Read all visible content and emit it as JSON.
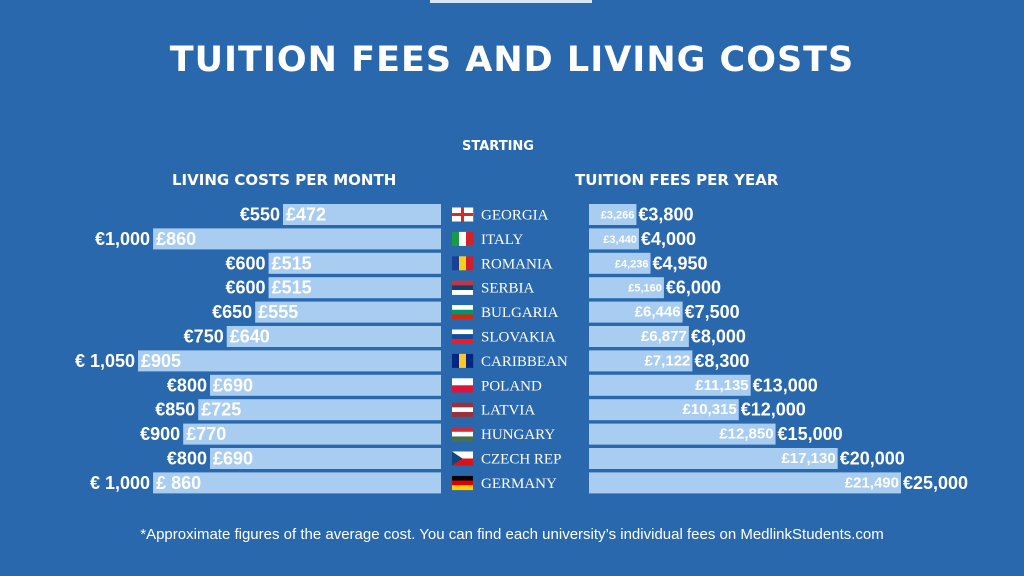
{
  "title": "TUITION FEES AND LIVING COSTS",
  "subheading": "STARTING",
  "left_header": "LIVING COSTS PER MONTH",
  "right_header": "TUITION FEES PER YEAR",
  "footnote": "*Approximate figures of the average cost. You can find each university’s individual fees on MedlinkStudents.com",
  "colors": {
    "background": "#2a68ad",
    "bar": "#a9cdf0",
    "text": "#ffffff"
  },
  "chart_data": [
    {
      "type": "bar",
      "orientation": "horizontal",
      "direction": "right-to-left",
      "title": "LIVING COSTS PER MONTH",
      "categories": [
        "GEORGIA",
        "ITALY",
        "ROMANIA",
        "SERBIA",
        "BULGARIA",
        "SLOVAKIA",
        "CARIBBEAN",
        "POLAND",
        "LATVIA",
        "HUNGARY",
        "CZECH REP",
        "GERMANY"
      ],
      "value_labels_eur": [
        "€550",
        "€1,000",
        "€600",
        "€600",
        "€650",
        "€750",
        "€ 1,050",
        "€800",
        "€850",
        "€900",
        "€800",
        "€ 1,000"
      ],
      "value_labels_gbp": [
        "£472",
        "£860",
        "£515",
        "£515",
        "£555",
        "£640",
        "£905",
        "£690",
        "£725",
        "£770",
        "£690",
        "£ 860"
      ],
      "series": [
        {
          "values": [
            472,
            860,
            515,
            515,
            555,
            640,
            905,
            690,
            725,
            770,
            690,
            860
          ]
        }
      ]
    },
    {
      "type": "bar",
      "orientation": "horizontal",
      "direction": "left-to-right",
      "title": "TUITION FEES PER YEAR",
      "categories": [
        "GEORGIA",
        "ITALY",
        "ROMANIA",
        "SERBIA",
        "BULGARIA",
        "SLOVAKIA",
        "CARIBBEAN",
        "POLAND",
        "LATVIA",
        "HUNGARY",
        "CZECH REP",
        "GERMANY"
      ],
      "value_labels_gbp": [
        "£3,266",
        "£3,440",
        "£4,236",
        "£5,160",
        "£6,446",
        "£6,877",
        "£7,122",
        "£11,135",
        "£10,315",
        "£12,850",
        "£17,130",
        "£21,490"
      ],
      "value_labels_eur": [
        "€3,800",
        "€4,000",
        "€4,950",
        "€6,000",
        "€7,500",
        "€8,000",
        "€8,300",
        "€13,000",
        "€12,000",
        "€15,000",
        "€20,000",
        "€25,000"
      ],
      "series": [
        {
          "values": [
            3266,
            3440,
            4236,
            5160,
            6446,
            6877,
            7122,
            11135,
            10315,
            12850,
            17130,
            21490
          ]
        }
      ]
    }
  ],
  "flags": [
    {
      "country": "GEORGIA",
      "icon": "georgia-flag-icon",
      "stripes": "vertical",
      "colors": [
        "#ffffff"
      ],
      "cross": "#d62b2b"
    },
    {
      "country": "ITALY",
      "icon": "italy-flag-icon",
      "stripes": "vertical",
      "colors": [
        "#1b9a46",
        "#ffffff",
        "#d2232a"
      ]
    },
    {
      "country": "ROMANIA",
      "icon": "romania-flag-icon",
      "stripes": "vertical",
      "colors": [
        "#1b3f94",
        "#f7d117",
        "#cf1f2e"
      ]
    },
    {
      "country": "SERBIA",
      "icon": "serbia-flag-icon",
      "stripes": "horizontal",
      "colors": [
        "#c6363c",
        "#0c4076",
        "#ffffff"
      ]
    },
    {
      "country": "BULGARIA",
      "icon": "bulgaria-flag-icon",
      "stripes": "horizontal",
      "colors": [
        "#ffffff",
        "#00966e",
        "#d62612"
      ]
    },
    {
      "country": "SLOVAKIA",
      "icon": "slovakia-flag-icon",
      "stripes": "horizontal",
      "colors": [
        "#ffffff",
        "#0b4ea2",
        "#ee1c25"
      ]
    },
    {
      "country": "CARIBBEAN",
      "icon": "caribbean-flag-icon",
      "stripes": "vertical",
      "colors": [
        "#00267f",
        "#ffc726",
        "#00267f"
      ]
    },
    {
      "country": "POLAND",
      "icon": "poland-flag-icon",
      "stripes": "horizontal",
      "colors": [
        "#ffffff",
        "#dc143c"
      ]
    },
    {
      "country": "LATVIA",
      "icon": "latvia-flag-icon",
      "stripes": "horizontal",
      "colors": [
        "#9e3039",
        "#ffffff",
        "#9e3039"
      ]
    },
    {
      "country": "HUNGARY",
      "icon": "hungary-flag-icon",
      "stripes": "horizontal",
      "colors": [
        "#ce2939",
        "#ffffff",
        "#477050"
      ]
    },
    {
      "country": "CZECH REP",
      "icon": "czech-flag-icon",
      "stripes": "horizontal",
      "colors": [
        "#ffffff",
        "#d7141a"
      ],
      "triangle": "#11457e"
    },
    {
      "country": "GERMANY",
      "icon": "germany-flag-icon",
      "stripes": "horizontal",
      "colors": [
        "#000000",
        "#dd0000",
        "#ffce00"
      ]
    }
  ]
}
